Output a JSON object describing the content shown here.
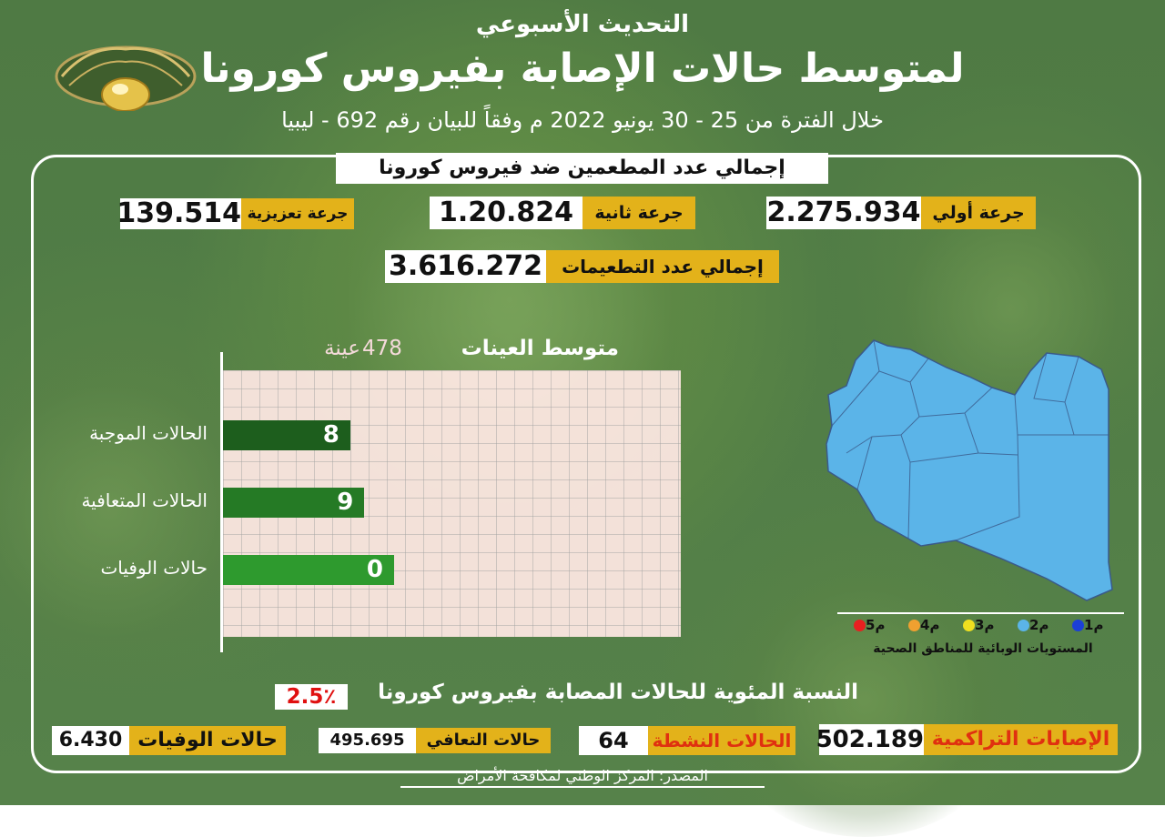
{
  "header": {
    "line1": "التحديث الأسبوعي",
    "line2": "لمتوسط حالات الإصابة بفيروس كورونا",
    "line3": "خلال الفترة من 25 - 30 يونيو 2022 م وفقاً للبيان رقم 692 - ليبيا"
  },
  "vaccination": {
    "title": "إجمالي عدد المطعمين ضد فيروس كورونا",
    "first_dose_label": "جرعة أولي",
    "first_dose_value": "2.275.934",
    "second_dose_label": "جرعة ثانية",
    "second_dose_value": "1.20.824",
    "booster_label": "جرعة تعزيزية",
    "booster_value": "139.514",
    "total_label": "إجمالي عدد التطعيمات",
    "total_value": "3.616.272"
  },
  "samples": {
    "label": "متوسط العينات",
    "value": "478",
    "unit": "عينة"
  },
  "chart_data": {
    "type": "bar",
    "orientation": "horizontal",
    "categories": [
      "الحالات الموجبة",
      "الحالات المتعافية",
      "حالات الوفيات"
    ],
    "values": [
      8,
      9,
      0
    ],
    "value_labels": [
      "8",
      "9",
      "0"
    ],
    "colors": [
      "#1d5e1d",
      "#257a25",
      "#2e9a2e"
    ]
  },
  "map": {
    "fill_color": "#5bb4e8",
    "legend": [
      "م1",
      "م2",
      "م3",
      "م4",
      "م5"
    ],
    "legend_colors": [
      "#1b3fd8",
      "#5bb4e8",
      "#f0e020",
      "#f0a030",
      "#e82020"
    ],
    "legend_title": "المستويات الوبائية للمناطق الصحية"
  },
  "percentage": {
    "label": "النسبة المئوية للحالات المصابة بفيروس كورونا",
    "value": "2.5٪"
  },
  "totals": {
    "cumulative_label": "الإصابات التراكمية",
    "cumulative_value": "502.189",
    "active_label": "الحالات النشطة",
    "active_value": "64",
    "recovered_label": "حالات التعافي",
    "recovered_value": "495.695",
    "deaths_label": "حالات الوفيات",
    "deaths_value": "6.430"
  },
  "source": "المصدر: المركز الوطني لمكافحة الأمراض"
}
